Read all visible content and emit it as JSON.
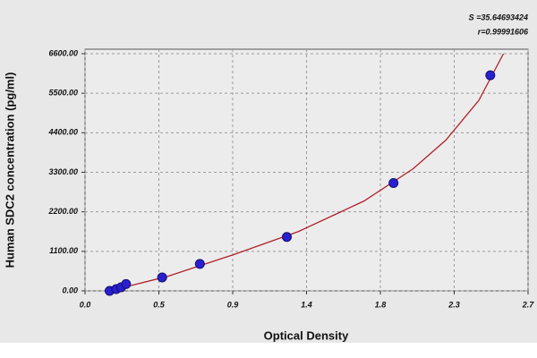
{
  "chart_data": {
    "type": "scatter",
    "x_label": "Optical Density",
    "y_label": "Human SDC2 concentration (pg/ml)",
    "annotations": [
      "S =35.64693424",
      "r=0.99991606"
    ],
    "points": {
      "color": "#2a1fd0",
      "x": [
        0.15,
        0.19,
        0.22,
        0.25,
        0.47,
        0.7,
        1.23,
        1.88,
        2.47
      ],
      "values": [
        0,
        50,
        100,
        190,
        375,
        750,
        1500,
        3000,
        6000
      ]
    },
    "fit": {
      "color": "#b0202a",
      "x": [
        0.15,
        0.5,
        0.9,
        1.3,
        1.7,
        2.0,
        2.2,
        2.4,
        2.55
      ],
      "values": [
        0,
        400,
        1000,
        1650,
        2500,
        3400,
        4200,
        5300,
        6600
      ]
    },
    "xlim": [
      0,
      2.7
    ],
    "xticks": [
      {
        "value": 0,
        "label": "0.0"
      },
      {
        "value": 0.45,
        "label": "0.5"
      },
      {
        "value": 0.9,
        "label": "0.9"
      },
      {
        "value": 1.35,
        "label": "1.4"
      },
      {
        "value": 1.8,
        "label": "1.8"
      },
      {
        "value": 2.25,
        "label": "2.3"
      },
      {
        "value": 2.7,
        "label": "2.7"
      }
    ],
    "ylim": [
      0,
      6600
    ],
    "yticks": [
      {
        "value": 0,
        "label": "0.00"
      },
      {
        "value": 1100,
        "label": "1100.00"
      },
      {
        "value": 2200,
        "label": "2200.00"
      },
      {
        "value": 3300,
        "label": "3300.00"
      },
      {
        "value": 4400,
        "label": "4400.00"
      },
      {
        "value": 5500,
        "label": "5500.00"
      },
      {
        "value": 6600,
        "label": "6600.00"
      }
    ],
    "grid": true
  }
}
